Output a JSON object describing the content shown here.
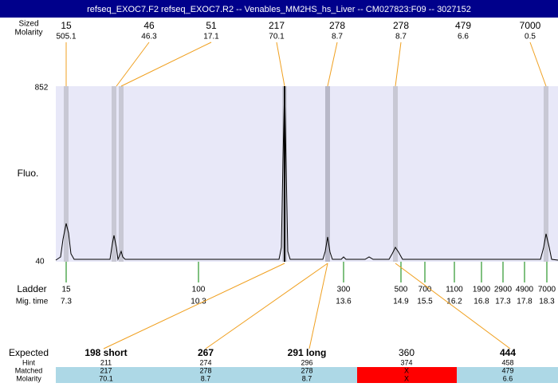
{
  "header": {
    "title": "refseq_EXOC7.F2  refseq_EXOC7.R2 -- Venables_MM2HS_hs_Liver -- CM027823:F09 -- 3027152"
  },
  "top": {
    "size_label": "Sized",
    "molarity_label": "Molarity",
    "peaks": [
      {
        "size": "15",
        "molarity": "505.1"
      },
      {
        "size": "46",
        "molarity": "46.3"
      },
      {
        "size": "51",
        "molarity": "17.1"
      },
      {
        "size": "217",
        "molarity": "70.1"
      },
      {
        "size": "278",
        "molarity": "8.7"
      },
      {
        "size": "278",
        "molarity": "8.7"
      },
      {
        "size": "479",
        "molarity": "6.6"
      },
      {
        "size": "7000",
        "molarity": "0.5"
      }
    ]
  },
  "plot": {
    "y_max": "852",
    "y_label": "Fluo.",
    "y_min": "40"
  },
  "ladder": {
    "label": "Ladder",
    "time_label": "Mig. time",
    "items": [
      {
        "size": "15",
        "time": "7.3"
      },
      {
        "size": "100",
        "time": "10.3"
      },
      {
        "size": "300",
        "time": "13.6"
      },
      {
        "size": "500",
        "time": "14.9"
      },
      {
        "size": "700",
        "time": "15.5"
      },
      {
        "size": "1100",
        "time": "16.2"
      },
      {
        "size": "1900",
        "time": "16.8"
      },
      {
        "size": "2900",
        "time": "17.3"
      },
      {
        "size": "4900",
        "time": "17.8"
      },
      {
        "size": "7000",
        "time": "18.3"
      }
    ]
  },
  "table": {
    "row_labels": [
      "Expected",
      "Hint",
      "Matched",
      "Molarity"
    ],
    "columns": [
      {
        "expected": "198 short",
        "hint": "211",
        "matched": "217",
        "molarity": "70.1"
      },
      {
        "expected": "267",
        "hint": "274",
        "matched": "278",
        "molarity": "8.7"
      },
      {
        "expected": "291 long",
        "hint": "296",
        "matched": "278",
        "molarity": "8.7"
      },
      {
        "expected": "360",
        "hint": "374",
        "matched": "X",
        "molarity": "X"
      },
      {
        "expected": "444",
        "hint": "458",
        "matched": "479",
        "molarity": "6.6"
      }
    ]
  }
}
